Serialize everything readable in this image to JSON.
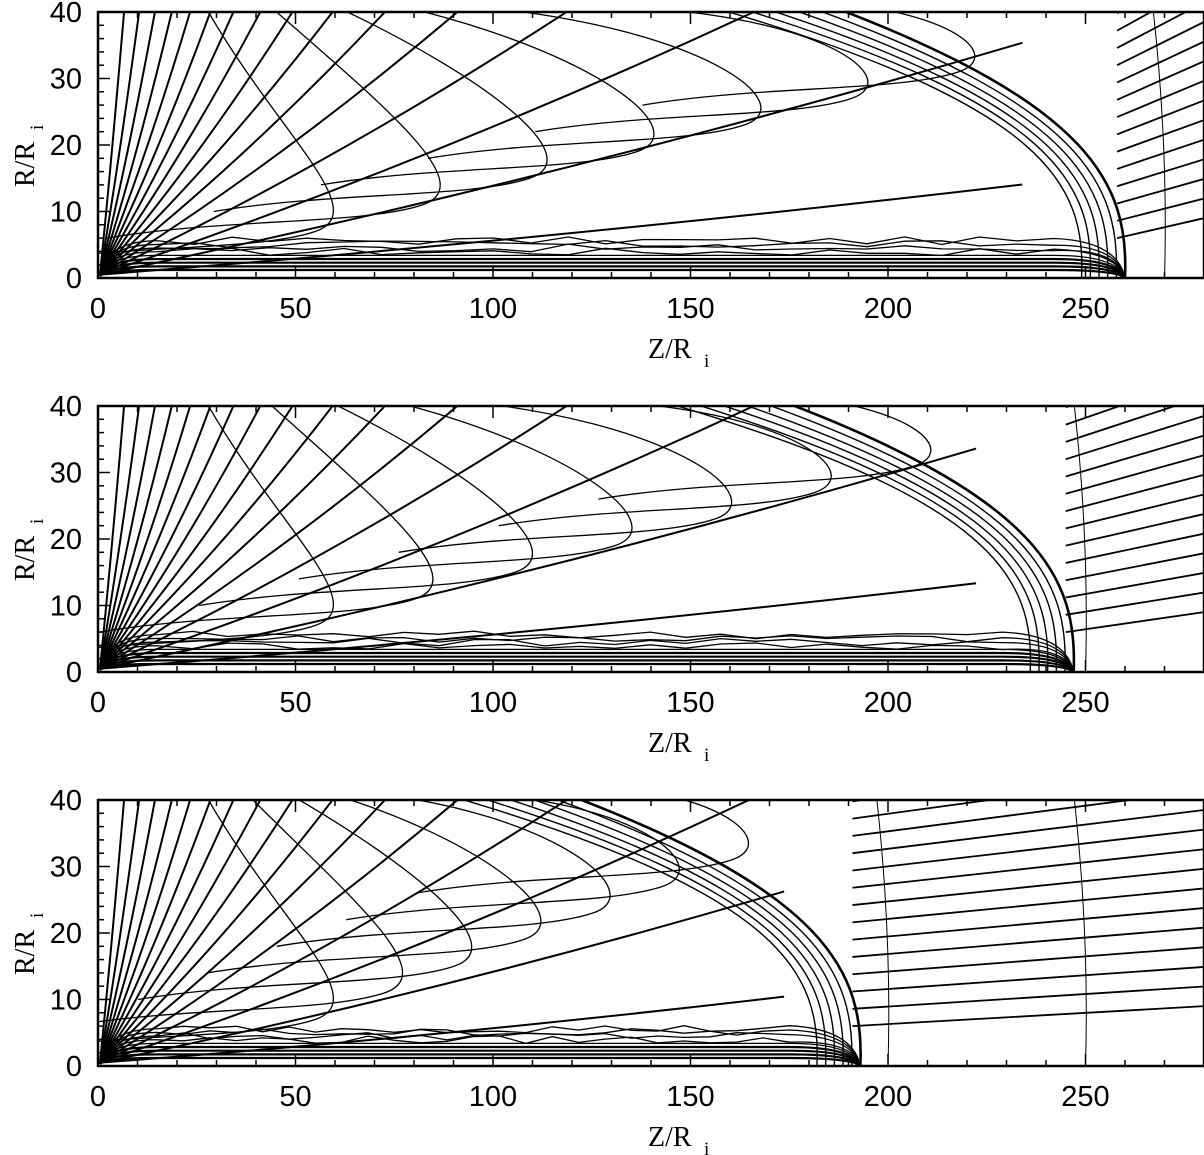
{
  "chart_data": [
    {
      "type": "contour",
      "title": "",
      "xlabel": "Z/R",
      "xlabel_sub": "i",
      "ylabel": "R/R",
      "ylabel_sub": "i",
      "xlim": [
        0,
        280
      ],
      "ylim": [
        0,
        40
      ],
      "xticks": [
        0,
        50,
        100,
        150,
        200,
        250
      ],
      "yticks": [
        0,
        10,
        20,
        30,
        40
      ],
      "bow_shock_z": 260,
      "reference_arcs_z": [
        270
      ],
      "line_color": "#000000"
    },
    {
      "type": "contour",
      "title": "",
      "xlabel": "Z/R",
      "xlabel_sub": "i",
      "ylabel": "R/R",
      "ylabel_sub": "i",
      "xlim": [
        0,
        280
      ],
      "ylim": [
        0,
        40
      ],
      "xticks": [
        0,
        50,
        100,
        150,
        200,
        250
      ],
      "yticks": [
        0,
        10,
        20,
        30,
        40
      ],
      "bow_shock_z": 247,
      "reference_arcs_z": [
        250
      ],
      "line_color": "#000000"
    },
    {
      "type": "contour",
      "title": "",
      "xlabel": "Z/R",
      "xlabel_sub": "i",
      "ylabel": "R/R",
      "ylabel_sub": "i",
      "xlim": [
        0,
        280
      ],
      "ylim": [
        0,
        40
      ],
      "xticks": [
        0,
        50,
        100,
        150,
        200,
        250
      ],
      "yticks": [
        0,
        10,
        20,
        30,
        40
      ],
      "bow_shock_z": 193,
      "reference_arcs_z": [
        200,
        250
      ],
      "line_color": "#000000"
    }
  ]
}
